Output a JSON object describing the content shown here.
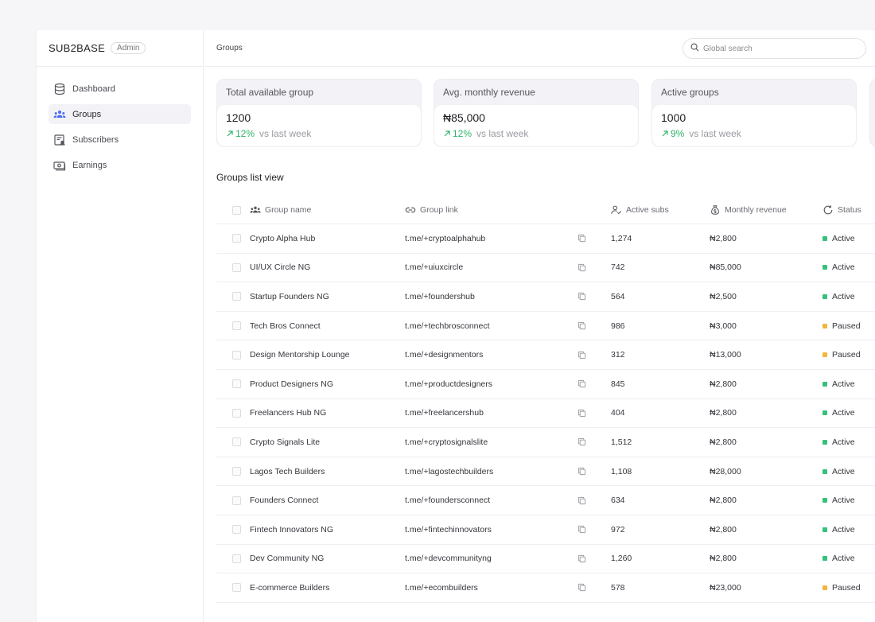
{
  "brand": {
    "name": "SUB2BASE",
    "badge": "Admin"
  },
  "nav": [
    {
      "label": "Dashboard",
      "icon": "database-icon",
      "active": false
    },
    {
      "label": "Groups",
      "icon": "users-icon",
      "active": true
    },
    {
      "label": "Subscribers",
      "icon": "subscribers-list-icon",
      "active": false
    },
    {
      "label": "Earnings",
      "icon": "money-icon",
      "active": false
    }
  ],
  "topbar": {
    "breadcrumb": "Groups",
    "search_placeholder": "Global search"
  },
  "stats": [
    {
      "label": "Total available group",
      "value": "1200",
      "change": "12%",
      "suffix": "vs last week"
    },
    {
      "label": "Avg. monthly revenue",
      "value": "₦85,000",
      "change": "12%",
      "suffix": "vs last week"
    },
    {
      "label": "Active groups",
      "value": "1000",
      "change": "9%",
      "suffix": "vs last week"
    }
  ],
  "list_title": "Groups list view",
  "table": {
    "headers": {
      "name": "Group name",
      "link": "Group link",
      "subs": "Active subs",
      "revenue": "Monthly revenue",
      "status": "Status"
    },
    "rows": [
      {
        "name": "Crypto Alpha Hub",
        "link": "t.me/+cryptoalphahub",
        "subs": "1,274",
        "revenue": "₦2,800",
        "status": "Active"
      },
      {
        "name": "UI/UX Circle NG",
        "link": "t.me/+uiuxcircle",
        "subs": "742",
        "revenue": "₦85,000",
        "status": "Active"
      },
      {
        "name": "Startup Founders NG",
        "link": "t.me/+foundershub",
        "subs": "564",
        "revenue": "₦2,500",
        "status": "Active"
      },
      {
        "name": "Tech Bros Connect",
        "link": "t.me/+techbrosconnect",
        "subs": "986",
        "revenue": "₦3,000",
        "status": "Paused"
      },
      {
        "name": "Design Mentorship Lounge",
        "link": "t.me/+designmentors",
        "subs": "312",
        "revenue": "₦13,000",
        "status": "Paused"
      },
      {
        "name": "Product Designers NG",
        "link": "t.me/+productdesigners",
        "subs": "845",
        "revenue": "₦2,800",
        "status": "Active"
      },
      {
        "name": "Freelancers Hub NG",
        "link": "t.me/+freelancershub",
        "subs": "404",
        "revenue": "₦2,800",
        "status": "Active"
      },
      {
        "name": "Crypto Signals Lite",
        "link": "t.me/+cryptosignalslite",
        "subs": "1,512",
        "revenue": "₦2,800",
        "status": "Active"
      },
      {
        "name": "Lagos Tech Builders",
        "link": "t.me/+lagostechbuilders",
        "subs": "1,108",
        "revenue": "₦28,000",
        "status": "Active"
      },
      {
        "name": "Founders Connect",
        "link": "t.me/+foundersconnect",
        "subs": "634",
        "revenue": "₦2,800",
        "status": "Active"
      },
      {
        "name": "Fintech Innovators NG",
        "link": "t.me/+fintechinnovators",
        "subs": "972",
        "revenue": "₦2,800",
        "status": "Active"
      },
      {
        "name": "Dev Community NG",
        "link": "t.me/+devcommunityng",
        "subs": "1,260",
        "revenue": "₦2,800",
        "status": "Active"
      },
      {
        "name": "E-commerce Builders",
        "link": "t.me/+ecombuilders",
        "subs": "578",
        "revenue": "₦23,000",
        "status": "Paused"
      }
    ]
  },
  "colors": {
    "active": "#34c17a",
    "paused": "#f2b63c",
    "trend_up": "#2fb36a",
    "accent_icon": "#4a6cf7"
  }
}
